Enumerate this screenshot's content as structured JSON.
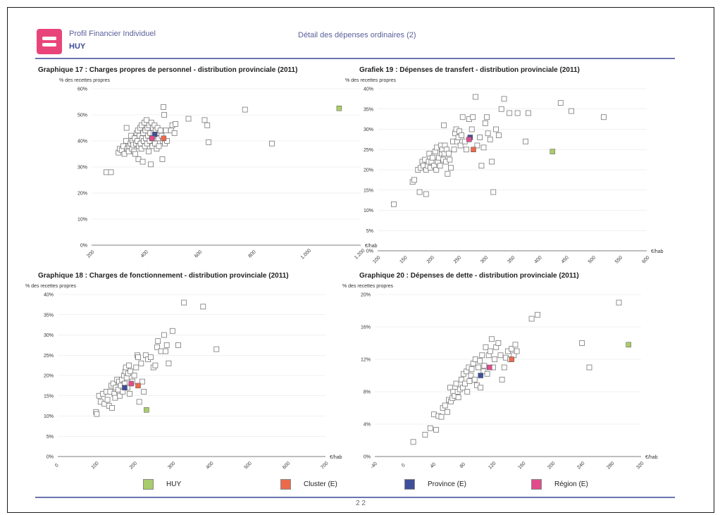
{
  "header": {
    "title": "Profil Financier Individuel",
    "municipality": "HUY",
    "section": "Détail des dépenses ordinaires (2)"
  },
  "footer": {
    "page_number": "2 2"
  },
  "legend": [
    {
      "name": "HUY",
      "color": "#a9cc6a"
    },
    {
      "name": "Cluster (E)",
      "color": "#ec6a4c"
    },
    {
      "name": "Province (E)",
      "color": "#3f4f9a"
    },
    {
      "name": "Région (E)",
      "color": "#e04d8a"
    }
  ],
  "chart_data": [
    {
      "type": "scatter",
      "title": "Graphique 17 : Charges propres de personnel - distribution provinciale (2011)",
      "ylabel": "% des recettes propres",
      "xunit": "€/hab",
      "xlim": [
        200,
        1200
      ],
      "ylim": [
        0,
        60
      ],
      "xticks": [
        200,
        400,
        600,
        800,
        1000,
        1200
      ],
      "xtick_labels": [
        "200",
        "400",
        "600",
        "800",
        "1.000",
        "1.200"
      ],
      "yticks": [
        0,
        10,
        20,
        30,
        40,
        50,
        60
      ],
      "ytick_labels": [
        "0%",
        "10%",
        "20%",
        "30%",
        "40%",
        "50%",
        "60%"
      ],
      "grid": true,
      "points": [
        [
          255,
          28
        ],
        [
          272,
          28
        ],
        [
          300,
          35.5
        ],
        [
          305,
          37
        ],
        [
          312,
          36.5
        ],
        [
          318,
          38
        ],
        [
          322,
          35
        ],
        [
          328,
          40
        ],
        [
          330,
          45
        ],
        [
          333,
          37
        ],
        [
          338,
          36
        ],
        [
          340,
          38
        ],
        [
          345,
          39
        ],
        [
          347,
          42
        ],
        [
          350,
          37
        ],
        [
          352,
          40
        ],
        [
          355,
          38.5
        ],
        [
          358,
          36
        ],
        [
          360,
          41
        ],
        [
          362,
          35
        ],
        [
          365,
          39
        ],
        [
          368,
          43
        ],
        [
          370,
          40
        ],
        [
          372,
          44
        ],
        [
          374,
          33
        ],
        [
          376,
          38
        ],
        [
          378,
          42
        ],
        [
          380,
          45
        ],
        [
          382,
          39
        ],
        [
          385,
          37
        ],
        [
          386,
          46
        ],
        [
          388,
          41
        ],
        [
          390,
          32
        ],
        [
          392,
          43
        ],
        [
          394,
          40
        ],
        [
          396,
          47
        ],
        [
          398,
          38
        ],
        [
          400,
          44
        ],
        [
          402,
          41
        ],
        [
          404,
          48
        ],
        [
          406,
          39
        ],
        [
          408,
          45
        ],
        [
          410,
          42
        ],
        [
          412,
          36
        ],
        [
          414,
          46
        ],
        [
          416,
          40
        ],
        [
          418,
          43
        ],
        [
          420,
          31
        ],
        [
          422,
          47
        ],
        [
          424,
          41
        ],
        [
          426,
          38
        ],
        [
          428,
          45
        ],
        [
          430,
          43
        ],
        [
          432,
          40
        ],
        [
          434,
          46
        ],
        [
          436,
          39
        ],
        [
          438,
          44
        ],
        [
          440,
          42
        ],
        [
          442,
          37
        ],
        [
          445,
          45
        ],
        [
          448,
          41
        ],
        [
          450,
          38
        ],
        [
          453,
          43
        ],
        [
          456,
          44
        ],
        [
          460,
          42
        ],
        [
          463,
          33
        ],
        [
          465,
          40
        ],
        [
          467,
          53
        ],
        [
          470,
          50
        ],
        [
          472,
          39
        ],
        [
          476,
          44
        ],
        [
          480,
          40
        ],
        [
          495,
          44
        ],
        [
          500,
          46
        ],
        [
          508,
          43
        ],
        [
          512,
          46.5
        ],
        [
          560,
          48.5
        ],
        [
          620,
          48
        ],
        [
          630,
          46
        ],
        [
          635,
          39.5
        ],
        [
          770,
          52
        ],
        [
          870,
          39
        ]
      ],
      "highlights": [
        {
          "series": "HUY",
          "x": 1120,
          "y": 52.5
        },
        {
          "series": "Province (E)",
          "x": 435,
          "y": 42.5
        },
        {
          "series": "Région (E)",
          "x": 425,
          "y": 41
        },
        {
          "series": "Cluster (E)",
          "x": 468,
          "y": 41
        }
      ]
    },
    {
      "type": "scatter",
      "title": "Grafiek 19 : Dépenses de transfert - distribution provinciale (2011)",
      "ylabel": "% des recettes propres",
      "xunit": "€/hab",
      "xlim": [
        100,
        600
      ],
      "ylim": [
        0,
        40
      ],
      "xticks": [
        100,
        150,
        200,
        250,
        300,
        350,
        400,
        450,
        500,
        550,
        600
      ],
      "xtick_labels": [
        "100",
        "150",
        "200",
        "250",
        "300",
        "350",
        "400",
        "450",
        "500",
        "550",
        "600"
      ],
      "yticks": [
        0,
        5,
        10,
        15,
        20,
        25,
        30,
        35,
        40
      ],
      "ytick_labels": [
        "0%",
        "5%",
        "10%",
        "15%",
        "20%",
        "25%",
        "30%",
        "35%",
        "40%"
      ],
      "grid": true,
      "points": [
        [
          130,
          11.5
        ],
        [
          165,
          17
        ],
        [
          168,
          17.5
        ],
        [
          175,
          20
        ],
        [
          178,
          14.5
        ],
        [
          180,
          20.5
        ],
        [
          183,
          22
        ],
        [
          185,
          21
        ],
        [
          188,
          22.5
        ],
        [
          190,
          14
        ],
        [
          190,
          20
        ],
        [
          193,
          21
        ],
        [
          195,
          22
        ],
        [
          196,
          24
        ],
        [
          198,
          20.5
        ],
        [
          200,
          22
        ],
        [
          202,
          23
        ],
        [
          205,
          21
        ],
        [
          207,
          24.5
        ],
        [
          209,
          20
        ],
        [
          210,
          25.5
        ],
        [
          212,
          22
        ],
        [
          214,
          23
        ],
        [
          216,
          21
        ],
        [
          218,
          26
        ],
        [
          219,
          24
        ],
        [
          220,
          25
        ],
        [
          222,
          22.5
        ],
        [
          223,
          31
        ],
        [
          224,
          24
        ],
        [
          225,
          26
        ],
        [
          227,
          22
        ],
        [
          228,
          25
        ],
        [
          230,
          19
        ],
        [
          232,
          24
        ],
        [
          234,
          22.5
        ],
        [
          236,
          20.5
        ],
        [
          240,
          27
        ],
        [
          242,
          25
        ],
        [
          244,
          29
        ],
        [
          246,
          30
        ],
        [
          248,
          27
        ],
        [
          250,
          28
        ],
        [
          252,
          29.5
        ],
        [
          254,
          26
        ],
        [
          256,
          28.5
        ],
        [
          258,
          33
        ],
        [
          262,
          27
        ],
        [
          265,
          25
        ],
        [
          270,
          32.5
        ],
        [
          275,
          30
        ],
        [
          277,
          33
        ],
        [
          282,
          38
        ],
        [
          285,
          26
        ],
        [
          290,
          28
        ],
        [
          293,
          21
        ],
        [
          297,
          25.5
        ],
        [
          300,
          31.5
        ],
        [
          303,
          33
        ],
        [
          305,
          29
        ],
        [
          309,
          27.5
        ],
        [
          312,
          22
        ],
        [
          315,
          14.5
        ],
        [
          320,
          30
        ],
        [
          325,
          28.5
        ],
        [
          330,
          35
        ],
        [
          335,
          37.5
        ],
        [
          345,
          34
        ],
        [
          360,
          34
        ],
        [
          375,
          27
        ],
        [
          380,
          34
        ],
        [
          440,
          36.5
        ],
        [
          460,
          34.5
        ],
        [
          520,
          33
        ]
      ],
      "highlights": [
        {
          "series": "HUY",
          "x": 425,
          "y": 24.5
        },
        {
          "series": "Province (E)",
          "x": 272,
          "y": 28
        },
        {
          "series": "Région (E)",
          "x": 270,
          "y": 27.5
        },
        {
          "series": "Cluster (E)",
          "x": 278,
          "y": 25
        }
      ]
    },
    {
      "type": "scatter",
      "title": "Graphique 18 : Charges de fonctionnement - distribution provinciale (2011)",
      "ylabel": "% des recettes propres",
      "xunit": "€/hab",
      "xlim": [
        0,
        700
      ],
      "ylim": [
        0,
        40
      ],
      "xticks": [
        0,
        100,
        200,
        300,
        400,
        500,
        600,
        700
      ],
      "xtick_labels": [
        "0",
        "100",
        "200",
        "300",
        "400",
        "500",
        "600",
        "700"
      ],
      "yticks": [
        0,
        5,
        10,
        15,
        20,
        25,
        30,
        35,
        40
      ],
      "ytick_labels": [
        "0%",
        "5%",
        "10%",
        "15%",
        "20%",
        "25%",
        "30%",
        "35%",
        "40%"
      ],
      "grid": true,
      "points": [
        [
          100,
          11
        ],
        [
          102,
          10.5
        ],
        [
          108,
          15
        ],
        [
          112,
          13.5
        ],
        [
          118,
          15.5
        ],
        [
          122,
          13
        ],
        [
          127,
          16
        ],
        [
          130,
          14
        ],
        [
          134,
          12.5
        ],
        [
          137,
          16
        ],
        [
          140,
          17.5
        ],
        [
          142,
          12
        ],
        [
          145,
          18
        ],
        [
          148,
          15.5
        ],
        [
          150,
          14.5
        ],
        [
          152,
          17
        ],
        [
          155,
          19
        ],
        [
          158,
          16.5
        ],
        [
          160,
          18.5
        ],
        [
          162,
          15
        ],
        [
          165,
          17.5
        ],
        [
          168,
          19
        ],
        [
          170,
          16
        ],
        [
          173,
          20
        ],
        [
          175,
          18
        ],
        [
          177,
          21
        ],
        [
          178,
          22
        ],
        [
          180,
          19.5
        ],
        [
          182,
          17
        ],
        [
          184,
          20.5
        ],
        [
          186,
          22.5
        ],
        [
          188,
          15.5
        ],
        [
          190,
          21
        ],
        [
          195,
          18.5
        ],
        [
          200,
          20
        ],
        [
          205,
          22
        ],
        [
          208,
          25
        ],
        [
          210,
          24.5
        ],
        [
          213,
          13.5
        ],
        [
          218,
          23
        ],
        [
          221,
          18.5
        ],
        [
          225,
          16
        ],
        [
          230,
          25
        ],
        [
          236,
          24
        ],
        [
          243,
          24.5
        ],
        [
          250,
          22
        ],
        [
          255,
          22.5
        ],
        [
          260,
          27
        ],
        [
          262,
          28.5
        ],
        [
          270,
          26
        ],
        [
          278,
          30
        ],
        [
          282,
          26
        ],
        [
          285,
          27.5
        ],
        [
          290,
          23
        ],
        [
          300,
          31
        ],
        [
          315,
          27.5
        ],
        [
          330,
          38
        ],
        [
          380,
          37
        ],
        [
          415,
          26.5
        ]
      ],
      "highlights": [
        {
          "series": "HUY",
          "x": 232,
          "y": 11.5
        },
        {
          "series": "Province (E)",
          "x": 175,
          "y": 17
        },
        {
          "series": "Région (E)",
          "x": 192,
          "y": 18
        },
        {
          "series": "Cluster (E)",
          "x": 210,
          "y": 17.5
        }
      ]
    },
    {
      "type": "scatter",
      "title": "Graphique 20 : Dépenses de dette - distribution provinciale (2011)",
      "ylabel": "% des recettes propres",
      "xunit": "€/hab",
      "xlim": [
        -40,
        320
      ],
      "ylim": [
        0,
        20
      ],
      "xticks": [
        -40,
        0,
        40,
        80,
        120,
        160,
        200,
        240,
        280,
        320
      ],
      "xtick_labels": [
        "-40",
        "0",
        "40",
        "80",
        "120",
        "160",
        "200",
        "240",
        "280",
        "320"
      ],
      "yticks": [
        0,
        4,
        8,
        12,
        16,
        20
      ],
      "ytick_labels": [
        "0%",
        "4%",
        "8%",
        "12%",
        "16%",
        "20%"
      ],
      "grid": true,
      "points": [
        [
          12,
          1.8
        ],
        [
          28,
          2.7
        ],
        [
          35,
          3.5
        ],
        [
          40,
          5.2
        ],
        [
          43,
          3.3
        ],
        [
          46,
          5
        ],
        [
          50,
          4.9
        ],
        [
          52,
          6
        ],
        [
          55,
          6.3
        ],
        [
          58,
          5.5
        ],
        [
          60,
          7
        ],
        [
          62,
          8.5
        ],
        [
          63,
          6.8
        ],
        [
          65,
          7.2
        ],
        [
          66,
          8
        ],
        [
          68,
          7.5
        ],
        [
          70,
          9
        ],
        [
          72,
          8
        ],
        [
          73,
          7.3
        ],
        [
          75,
          8.3
        ],
        [
          77,
          9.5
        ],
        [
          79,
          8.5
        ],
        [
          80,
          10.2
        ],
        [
          82,
          9
        ],
        [
          84,
          10.5
        ],
        [
          85,
          8
        ],
        [
          87,
          11
        ],
        [
          88,
          9.3
        ],
        [
          90,
          10
        ],
        [
          91,
          10.8
        ],
        [
          93,
          11.5
        ],
        [
          95,
          9.5
        ],
        [
          96,
          12
        ],
        [
          98,
          8.8
        ],
        [
          100,
          11
        ],
        [
          102,
          11.8
        ],
        [
          103,
          8.5
        ],
        [
          105,
          12.5
        ],
        [
          107,
          10.5
        ],
        [
          108,
          11.2
        ],
        [
          110,
          13.5
        ],
        [
          112,
          10.2
        ],
        [
          114,
          12.5
        ],
        [
          116,
          13
        ],
        [
          118,
          14.5
        ],
        [
          120,
          11
        ],
        [
          122,
          12
        ],
        [
          124,
          13.5
        ],
        [
          127,
          14
        ],
        [
          130,
          12.5
        ],
        [
          132,
          9.5
        ],
        [
          135,
          11
        ],
        [
          137,
          12.2
        ],
        [
          140,
          13
        ],
        [
          143,
          12
        ],
        [
          145,
          13.3
        ],
        [
          148,
          12.5
        ],
        [
          150,
          13.8
        ],
        [
          152,
          13
        ],
        [
          172,
          17
        ],
        [
          180,
          17.5
        ],
        [
          240,
          14
        ],
        [
          250,
          11
        ],
        [
          290,
          19
        ]
      ],
      "highlights": [
        {
          "series": "HUY",
          "x": 303,
          "y": 13.8
        },
        {
          "series": "Province (E)",
          "x": 103,
          "y": 10
        },
        {
          "series": "Région (E)",
          "x": 115,
          "y": 11
        },
        {
          "series": "Cluster (E)",
          "x": 145,
          "y": 12
        }
      ]
    }
  ]
}
